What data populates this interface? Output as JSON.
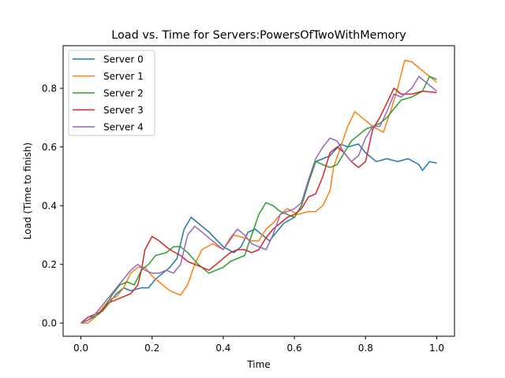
{
  "chart_data": {
    "type": "line",
    "title": "Load vs. Time for Servers:PowersOfTwoWithMemory",
    "xlabel": "Time",
    "ylabel": "Load (Time to finish)",
    "xlim": [
      -0.05,
      1.05
    ],
    "ylim": [
      -0.045,
      0.945
    ],
    "xticks": [
      "0.0",
      "0.2",
      "0.4",
      "0.6",
      "0.8",
      "1.0"
    ],
    "yticks": [
      "0.0",
      "0.2",
      "0.4",
      "0.6",
      "0.8"
    ],
    "grid": false,
    "legend_position": "top-left",
    "series": [
      {
        "name": "Server 0",
        "color": "#1f77b4",
        "points": [
          [
            0.0,
            0.0
          ],
          [
            0.02,
            0.01
          ],
          [
            0.05,
            0.03
          ],
          [
            0.08,
            0.07
          ],
          [
            0.1,
            0.1
          ],
          [
            0.12,
            0.12
          ],
          [
            0.14,
            0.11
          ],
          [
            0.17,
            0.12
          ],
          [
            0.19,
            0.12
          ],
          [
            0.21,
            0.15
          ],
          [
            0.23,
            0.17
          ],
          [
            0.25,
            0.19
          ],
          [
            0.27,
            0.22
          ],
          [
            0.29,
            0.32
          ],
          [
            0.31,
            0.36
          ],
          [
            0.33,
            0.34
          ],
          [
            0.36,
            0.31
          ],
          [
            0.4,
            0.26
          ],
          [
            0.43,
            0.24
          ],
          [
            0.45,
            0.26
          ],
          [
            0.47,
            0.31
          ],
          [
            0.49,
            0.32
          ],
          [
            0.51,
            0.3
          ],
          [
            0.53,
            0.28
          ],
          [
            0.55,
            0.31
          ],
          [
            0.57,
            0.34
          ],
          [
            0.6,
            0.36
          ],
          [
            0.62,
            0.4
          ],
          [
            0.64,
            0.48
          ],
          [
            0.66,
            0.55
          ],
          [
            0.68,
            0.56
          ],
          [
            0.7,
            0.57
          ],
          [
            0.73,
            0.61
          ],
          [
            0.75,
            0.6
          ],
          [
            0.78,
            0.61
          ],
          [
            0.8,
            0.58
          ],
          [
            0.83,
            0.55
          ],
          [
            0.86,
            0.56
          ],
          [
            0.89,
            0.55
          ],
          [
            0.92,
            0.56
          ],
          [
            0.95,
            0.54
          ],
          [
            0.96,
            0.52
          ],
          [
            0.98,
            0.55
          ],
          [
            1.0,
            0.545
          ]
        ]
      },
      {
        "name": "Server 1",
        "color": "#ff7f0e",
        "points": [
          [
            0.0,
            0.0
          ],
          [
            0.02,
            0.0
          ],
          [
            0.04,
            0.02
          ],
          [
            0.06,
            0.05
          ],
          [
            0.08,
            0.08
          ],
          [
            0.1,
            0.09
          ],
          [
            0.12,
            0.12
          ],
          [
            0.14,
            0.17
          ],
          [
            0.16,
            0.19
          ],
          [
            0.18,
            0.19
          ],
          [
            0.2,
            0.16
          ],
          [
            0.23,
            0.13
          ],
          [
            0.25,
            0.11
          ],
          [
            0.28,
            0.095
          ],
          [
            0.3,
            0.13
          ],
          [
            0.32,
            0.2
          ],
          [
            0.34,
            0.25
          ],
          [
            0.37,
            0.27
          ],
          [
            0.4,
            0.25
          ],
          [
            0.43,
            0.3
          ],
          [
            0.46,
            0.29
          ],
          [
            0.48,
            0.28
          ],
          [
            0.5,
            0.28
          ],
          [
            0.52,
            0.32
          ],
          [
            0.54,
            0.34
          ],
          [
            0.56,
            0.37
          ],
          [
            0.58,
            0.39
          ],
          [
            0.61,
            0.37
          ],
          [
            0.64,
            0.38
          ],
          [
            0.66,
            0.38
          ],
          [
            0.68,
            0.4
          ],
          [
            0.7,
            0.45
          ],
          [
            0.71,
            0.53
          ],
          [
            0.73,
            0.6
          ],
          [
            0.75,
            0.67
          ],
          [
            0.77,
            0.72
          ],
          [
            0.79,
            0.7
          ],
          [
            0.82,
            0.67
          ],
          [
            0.85,
            0.65
          ],
          [
            0.87,
            0.72
          ],
          [
            0.89,
            0.8
          ],
          [
            0.91,
            0.895
          ],
          [
            0.93,
            0.89
          ],
          [
            0.96,
            0.86
          ],
          [
            1.0,
            0.82
          ]
        ]
      },
      {
        "name": "Server 2",
        "color": "#2ca02c",
        "points": [
          [
            0.0,
            0.0
          ],
          [
            0.02,
            0.01
          ],
          [
            0.05,
            0.03
          ],
          [
            0.07,
            0.06
          ],
          [
            0.09,
            0.1
          ],
          [
            0.11,
            0.13
          ],
          [
            0.13,
            0.14
          ],
          [
            0.15,
            0.13
          ],
          [
            0.17,
            0.18
          ],
          [
            0.19,
            0.2
          ],
          [
            0.21,
            0.23
          ],
          [
            0.24,
            0.24
          ],
          [
            0.26,
            0.26
          ],
          [
            0.28,
            0.26
          ],
          [
            0.3,
            0.24
          ],
          [
            0.33,
            0.2
          ],
          [
            0.36,
            0.17
          ],
          [
            0.38,
            0.18
          ],
          [
            0.4,
            0.19
          ],
          [
            0.42,
            0.21
          ],
          [
            0.44,
            0.22
          ],
          [
            0.46,
            0.23
          ],
          [
            0.48,
            0.3
          ],
          [
            0.5,
            0.37
          ],
          [
            0.52,
            0.41
          ],
          [
            0.54,
            0.4
          ],
          [
            0.56,
            0.38
          ],
          [
            0.58,
            0.37
          ],
          [
            0.6,
            0.36
          ],
          [
            0.62,
            0.4
          ],
          [
            0.64,
            0.48
          ],
          [
            0.66,
            0.55
          ],
          [
            0.68,
            0.54
          ],
          [
            0.7,
            0.53
          ],
          [
            0.72,
            0.54
          ],
          [
            0.74,
            0.58
          ],
          [
            0.76,
            0.62
          ],
          [
            0.78,
            0.64
          ],
          [
            0.8,
            0.66
          ],
          [
            0.82,
            0.67
          ],
          [
            0.84,
            0.68
          ],
          [
            0.86,
            0.7
          ],
          [
            0.88,
            0.73
          ],
          [
            0.9,
            0.76
          ],
          [
            0.93,
            0.77
          ],
          [
            0.96,
            0.79
          ],
          [
            0.98,
            0.84
          ],
          [
            1.0,
            0.83
          ]
        ]
      },
      {
        "name": "Server 3",
        "color": "#d62728",
        "points": [
          [
            0.0,
            0.0
          ],
          [
            0.02,
            0.02
          ],
          [
            0.04,
            0.03
          ],
          [
            0.06,
            0.04
          ],
          [
            0.08,
            0.07
          ],
          [
            0.1,
            0.08
          ],
          [
            0.12,
            0.09
          ],
          [
            0.14,
            0.1
          ],
          [
            0.16,
            0.13
          ],
          [
            0.17,
            0.18
          ],
          [
            0.18,
            0.25
          ],
          [
            0.2,
            0.295
          ],
          [
            0.22,
            0.28
          ],
          [
            0.25,
            0.25
          ],
          [
            0.28,
            0.23
          ],
          [
            0.3,
            0.21
          ],
          [
            0.32,
            0.2
          ],
          [
            0.34,
            0.19
          ],
          [
            0.36,
            0.18
          ],
          [
            0.38,
            0.2
          ],
          [
            0.4,
            0.22
          ],
          [
            0.42,
            0.24
          ],
          [
            0.44,
            0.25
          ],
          [
            0.46,
            0.25
          ],
          [
            0.48,
            0.24
          ],
          [
            0.5,
            0.25
          ],
          [
            0.52,
            0.29
          ],
          [
            0.54,
            0.32
          ],
          [
            0.56,
            0.34
          ],
          [
            0.58,
            0.36
          ],
          [
            0.6,
            0.37
          ],
          [
            0.62,
            0.39
          ],
          [
            0.64,
            0.43
          ],
          [
            0.66,
            0.44
          ],
          [
            0.68,
            0.5
          ],
          [
            0.7,
            0.58
          ],
          [
            0.72,
            0.6
          ],
          [
            0.74,
            0.58
          ],
          [
            0.76,
            0.55
          ],
          [
            0.78,
            0.53
          ],
          [
            0.8,
            0.55
          ],
          [
            0.82,
            0.66
          ],
          [
            0.84,
            0.7
          ],
          [
            0.86,
            0.75
          ],
          [
            0.88,
            0.8
          ],
          [
            0.9,
            0.78
          ],
          [
            0.93,
            0.78
          ],
          [
            0.96,
            0.79
          ],
          [
            1.0,
            0.785
          ]
        ]
      },
      {
        "name": "Server 4",
        "color": "#9467bd",
        "points": [
          [
            0.0,
            0.0
          ],
          [
            0.02,
            0.01
          ],
          [
            0.04,
            0.03
          ],
          [
            0.06,
            0.06
          ],
          [
            0.08,
            0.09
          ],
          [
            0.1,
            0.12
          ],
          [
            0.12,
            0.15
          ],
          [
            0.14,
            0.18
          ],
          [
            0.16,
            0.2
          ],
          [
            0.18,
            0.18
          ],
          [
            0.2,
            0.17
          ],
          [
            0.22,
            0.17
          ],
          [
            0.24,
            0.18
          ],
          [
            0.26,
            0.17
          ],
          [
            0.28,
            0.2
          ],
          [
            0.3,
            0.3
          ],
          [
            0.32,
            0.33
          ],
          [
            0.34,
            0.31
          ],
          [
            0.37,
            0.28
          ],
          [
            0.4,
            0.25
          ],
          [
            0.42,
            0.29
          ],
          [
            0.44,
            0.32
          ],
          [
            0.46,
            0.3
          ],
          [
            0.48,
            0.27
          ],
          [
            0.5,
            0.26
          ],
          [
            0.52,
            0.25
          ],
          [
            0.54,
            0.3
          ],
          [
            0.56,
            0.37
          ],
          [
            0.58,
            0.38
          ],
          [
            0.6,
            0.39
          ],
          [
            0.62,
            0.41
          ],
          [
            0.64,
            0.49
          ],
          [
            0.66,
            0.56
          ],
          [
            0.68,
            0.6
          ],
          [
            0.7,
            0.63
          ],
          [
            0.72,
            0.62
          ],
          [
            0.74,
            0.58
          ],
          [
            0.76,
            0.55
          ],
          [
            0.78,
            0.57
          ],
          [
            0.8,
            0.63
          ],
          [
            0.82,
            0.67
          ],
          [
            0.84,
            0.67
          ],
          [
            0.86,
            0.72
          ],
          [
            0.88,
            0.78
          ],
          [
            0.9,
            0.77
          ],
          [
            0.93,
            0.8
          ],
          [
            0.95,
            0.84
          ],
          [
            0.97,
            0.82
          ],
          [
            1.0,
            0.79
          ]
        ]
      }
    ]
  }
}
